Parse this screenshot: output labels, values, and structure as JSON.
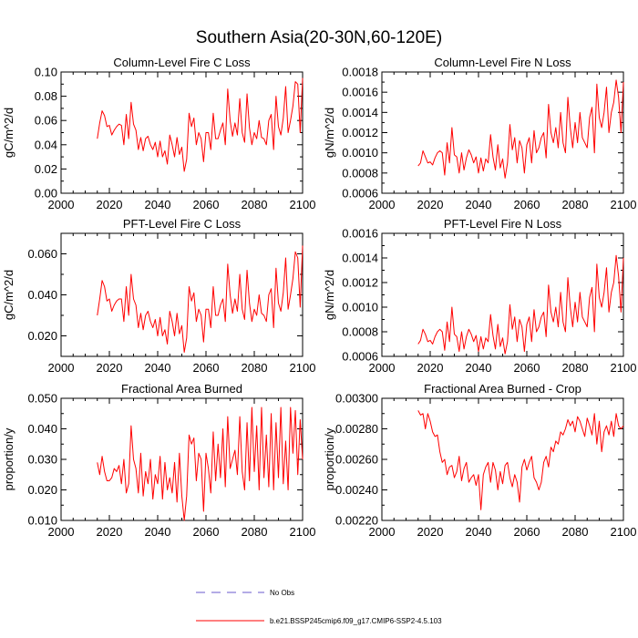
{
  "figure_title": "Southern Asia(20-30N,60-120E)",
  "colors": {
    "series": "#ff0000",
    "obs": "#6a5acd",
    "axis": "#000000"
  },
  "legend": {
    "obs_label": "No Obs",
    "model_label": "b.e21.BSSP245cmip6.f09_g17.CMIP6-SSP2-4.5.103"
  },
  "chart_data": [
    {
      "type": "line",
      "title": "Column-Level Fire C Loss",
      "ylabel": "gC/m^2/d",
      "xlabel": "",
      "xlim": [
        2000,
        2100
      ],
      "ylim": [
        0,
        0.1
      ],
      "xticks": [
        2000,
        2020,
        2040,
        2060,
        2080,
        2100
      ],
      "yticks": [
        0.0,
        0.02,
        0.04,
        0.06,
        0.08,
        0.1
      ],
      "ytick_labels": [
        "0.00",
        "0.02",
        "0.04",
        "0.06",
        "0.08",
        "0.10"
      ],
      "series": [
        {
          "name": "b.e21.BSSP245cmip6.f09_g17.CMIP6-SSP2-4.5.103",
          "x_start": 2015,
          "values": [
            0.045,
            0.058,
            0.068,
            0.064,
            0.055,
            0.056,
            0.048,
            0.052,
            0.055,
            0.057,
            0.056,
            0.04,
            0.065,
            0.045,
            0.075,
            0.057,
            0.052,
            0.036,
            0.046,
            0.035,
            0.045,
            0.047,
            0.04,
            0.036,
            0.042,
            0.03,
            0.043,
            0.03,
            0.035,
            0.024,
            0.048,
            0.04,
            0.03,
            0.046,
            0.032,
            0.038,
            0.018,
            0.028,
            0.066,
            0.055,
            0.062,
            0.04,
            0.05,
            0.045,
            0.026,
            0.05,
            0.05,
            0.036,
            0.066,
            0.045,
            0.045,
            0.052,
            0.058,
            0.04,
            0.086,
            0.06,
            0.047,
            0.058,
            0.048,
            0.078,
            0.05,
            0.042,
            0.082,
            0.054,
            0.04,
            0.05,
            0.045,
            0.06,
            0.046,
            0.045,
            0.04,
            0.06,
            0.065,
            0.036,
            0.08,
            0.055,
            0.048,
            0.062,
            0.088,
            0.05,
            0.06,
            0.072,
            0.092,
            0.09,
            0.05,
            0.095
          ]
        }
      ]
    },
    {
      "type": "line",
      "title": "Column-Level Fire N Loss",
      "ylabel": "gN/m^2/d",
      "xlabel": "",
      "xlim": [
        2000,
        2100
      ],
      "ylim": [
        0.0006,
        0.0018
      ],
      "xticks": [
        2000,
        2020,
        2040,
        2060,
        2080,
        2100
      ],
      "yticks": [
        0.0006,
        0.0008,
        0.001,
        0.0012,
        0.0014,
        0.0016,
        0.0018
      ],
      "ytick_labels": [
        "0.0006",
        "0.0008",
        "0.0010",
        "0.0012",
        "0.0014",
        "0.0016",
        "0.0018"
      ],
      "series": [
        {
          "name": "b.e21.BSSP245cmip6.f09_g17.CMIP6-SSP2-4.5.103",
          "x_start": 2015,
          "values": [
            0.00087,
            0.0009,
            0.00102,
            0.00096,
            0.0009,
            0.00091,
            0.00088,
            0.00095,
            0.001,
            0.00102,
            0.001,
            0.00078,
            0.0011,
            0.0009,
            0.00125,
            0.00098,
            0.00096,
            0.0008,
            0.001,
            0.00083,
            0.00095,
            0.00103,
            0.00098,
            0.0009,
            0.00096,
            0.0008,
            0.00095,
            0.00082,
            0.00094,
            0.0009,
            0.00118,
            0.00096,
            0.00083,
            0.00108,
            0.00085,
            0.00094,
            0.00075,
            0.0009,
            0.00128,
            0.00103,
            0.00115,
            0.0009,
            0.00112,
            0.00105,
            0.0008,
            0.00108,
            0.00115,
            0.0009,
            0.00122,
            0.001,
            0.00105,
            0.00115,
            0.0012,
            0.00095,
            0.00148,
            0.0012,
            0.0011,
            0.00125,
            0.00105,
            0.0014,
            0.0011,
            0.001,
            0.00155,
            0.00125,
            0.00105,
            0.0013,
            0.0011,
            0.0014,
            0.00115,
            0.0011,
            0.00105,
            0.00135,
            0.00145,
            0.001,
            0.00168,
            0.00135,
            0.00125,
            0.0014,
            0.00165,
            0.0012,
            0.0014,
            0.0015,
            0.00172,
            0.00155,
            0.0012,
            0.0017
          ]
        }
      ]
    },
    {
      "type": "line",
      "title": "PFT-Level Fire C Loss",
      "ylabel": "gC/m^2/d",
      "xlabel": "",
      "xlim": [
        2000,
        2100
      ],
      "ylim": [
        0.01,
        0.07
      ],
      "xticks": [
        2000,
        2020,
        2040,
        2060,
        2080,
        2100
      ],
      "yticks": [
        0.02,
        0.04,
        0.06
      ],
      "ytick_labels": [
        "0.020",
        "0.040",
        "0.060"
      ],
      "series": [
        {
          "name": "b.e21.BSSP245cmip6.f09_g17.CMIP6-SSP2-4.5.103",
          "x_start": 2015,
          "values": [
            0.03,
            0.038,
            0.047,
            0.044,
            0.037,
            0.038,
            0.032,
            0.035,
            0.037,
            0.038,
            0.038,
            0.027,
            0.044,
            0.03,
            0.05,
            0.038,
            0.035,
            0.024,
            0.031,
            0.023,
            0.03,
            0.032,
            0.027,
            0.024,
            0.028,
            0.02,
            0.029,
            0.02,
            0.023,
            0.016,
            0.032,
            0.027,
            0.02,
            0.031,
            0.021,
            0.025,
            0.012,
            0.019,
            0.044,
            0.037,
            0.041,
            0.027,
            0.033,
            0.03,
            0.017,
            0.033,
            0.033,
            0.024,
            0.044,
            0.03,
            0.03,
            0.035,
            0.038,
            0.027,
            0.055,
            0.04,
            0.031,
            0.038,
            0.032,
            0.05,
            0.033,
            0.028,
            0.052,
            0.036,
            0.027,
            0.033,
            0.03,
            0.04,
            0.031,
            0.03,
            0.027,
            0.04,
            0.043,
            0.024,
            0.053,
            0.036,
            0.032,
            0.041,
            0.058,
            0.033,
            0.04,
            0.048,
            0.061,
            0.058,
            0.034,
            0.064
          ]
        }
      ]
    },
    {
      "type": "line",
      "title": "PFT-Level Fire N Loss",
      "ylabel": "gN/m^2/d",
      "xlabel": "",
      "xlim": [
        2000,
        2100
      ],
      "ylim": [
        0.0006,
        0.0016
      ],
      "xticks": [
        2000,
        2020,
        2040,
        2060,
        2080,
        2100
      ],
      "yticks": [
        0.0006,
        0.0008,
        0.001,
        0.0012,
        0.0014,
        0.0016
      ],
      "ytick_labels": [
        "0.0006",
        "0.0008",
        "0.0010",
        "0.0012",
        "0.0014",
        "0.0016"
      ],
      "series": [
        {
          "name": "b.e21.BSSP245cmip6.f09_g17.CMIP6-SSP2-4.5.103",
          "x_start": 2015,
          "values": [
            0.0007,
            0.00073,
            0.00082,
            0.00078,
            0.00072,
            0.00073,
            0.0007,
            0.00076,
            0.0008,
            0.00082,
            0.0008,
            0.00065,
            0.00088,
            0.00072,
            0.001,
            0.00078,
            0.00076,
            0.00064,
            0.0008,
            0.00066,
            0.00076,
            0.00082,
            0.00078,
            0.00072,
            0.00077,
            0.00064,
            0.00076,
            0.00066,
            0.00075,
            0.00072,
            0.00094,
            0.00077,
            0.00066,
            0.00086,
            0.00068,
            0.00075,
            0.00062,
            0.00072,
            0.00102,
            0.00082,
            0.00092,
            0.00072,
            0.0009,
            0.00084,
            0.00064,
            0.00086,
            0.00092,
            0.00072,
            0.00098,
            0.0008,
            0.00084,
            0.00092,
            0.00096,
            0.00076,
            0.00118,
            0.00096,
            0.00088,
            0.001,
            0.00084,
            0.00112,
            0.00088,
            0.0008,
            0.00124,
            0.001,
            0.00084,
            0.00104,
            0.00088,
            0.00112,
            0.00092,
            0.00088,
            0.00084,
            0.00108,
            0.00116,
            0.0008,
            0.00135,
            0.00108,
            0.001,
            0.00112,
            0.00132,
            0.00096,
            0.00112,
            0.0012,
            0.00142,
            0.00125,
            0.00096,
            0.0014
          ]
        }
      ]
    },
    {
      "type": "line",
      "title": "Fractional Area Burned",
      "ylabel": "proportion/y",
      "xlabel": "",
      "xlim": [
        2000,
        2100
      ],
      "ylim": [
        0.01,
        0.05
      ],
      "xticks": [
        2000,
        2020,
        2040,
        2060,
        2080,
        2100
      ],
      "yticks": [
        0.01,
        0.02,
        0.03,
        0.04,
        0.05
      ],
      "ytick_labels": [
        "0.010",
        "0.020",
        "0.030",
        "0.040",
        "0.050"
      ],
      "series": [
        {
          "name": "b.e21.BSSP245cmip6.f09_g17.CMIP6-SSP2-4.5.103",
          "x_start": 2015,
          "values": [
            0.029,
            0.025,
            0.031,
            0.026,
            0.023,
            0.023,
            0.024,
            0.027,
            0.026,
            0.028,
            0.022,
            0.03,
            0.019,
            0.022,
            0.041,
            0.03,
            0.027,
            0.019,
            0.032,
            0.018,
            0.026,
            0.022,
            0.03,
            0.017,
            0.025,
            0.022,
            0.031,
            0.017,
            0.029,
            0.02,
            0.024,
            0.019,
            0.029,
            0.016,
            0.032,
            0.018,
            0.01,
            0.018,
            0.038,
            0.035,
            0.037,
            0.023,
            0.032,
            0.03,
            0.013,
            0.032,
            0.027,
            0.019,
            0.039,
            0.023,
            0.035,
            0.024,
            0.04,
            0.021,
            0.044,
            0.027,
            0.03,
            0.033,
            0.025,
            0.044,
            0.026,
            0.02,
            0.042,
            0.023,
            0.047,
            0.026,
            0.041,
            0.02,
            0.047,
            0.024,
            0.038,
            0.021,
            0.045,
            0.02,
            0.042,
            0.024,
            0.047,
            0.022,
            0.036,
            0.02,
            0.047,
            0.032,
            0.046,
            0.025,
            0.043,
            0.03
          ]
        }
      ]
    },
    {
      "type": "line",
      "title": "Fractional Area Burned - Crop",
      "ylabel": "proportion/y",
      "xlabel": "",
      "xlim": [
        2000,
        2100
      ],
      "ylim": [
        0.0022,
        0.003
      ],
      "xticks": [
        2000,
        2020,
        2040,
        2060,
        2080,
        2100
      ],
      "yticks": [
        0.0022,
        0.0024,
        0.0026,
        0.0028,
        0.003
      ],
      "ytick_labels": [
        "0.00220",
        "0.00240",
        "0.00260",
        "0.00280",
        "0.00300"
      ],
      "series": [
        {
          "name": "b.e21.BSSP245cmip6.f09_g17.CMIP6-SSP2-4.5.103",
          "x_start": 2015,
          "values": [
            0.00292,
            0.00289,
            0.0029,
            0.0028,
            0.0029,
            0.00285,
            0.00278,
            0.00275,
            0.00276,
            0.00265,
            0.00258,
            0.0026,
            0.0025,
            0.00255,
            0.00256,
            0.00248,
            0.00252,
            0.00262,
            0.00246,
            0.00254,
            0.00258,
            0.00245,
            0.00248,
            0.0025,
            0.00243,
            0.0025,
            0.00227,
            0.0025,
            0.00255,
            0.00258,
            0.00245,
            0.00258,
            0.00253,
            0.0024,
            0.00252,
            0.00244,
            0.00256,
            0.00258,
            0.00248,
            0.00242,
            0.0025,
            0.00245,
            0.00232,
            0.00255,
            0.0026,
            0.00253,
            0.00258,
            0.00262,
            0.00248,
            0.00245,
            0.0024,
            0.00245,
            0.00258,
            0.00262,
            0.00255,
            0.00268,
            0.00265,
            0.00272,
            0.0027,
            0.00278,
            0.00276,
            0.0028,
            0.00286,
            0.00282,
            0.00285,
            0.00278,
            0.00288,
            0.00285,
            0.0028,
            0.00275,
            0.00287,
            0.00282,
            0.00276,
            0.0029,
            0.0027,
            0.00285,
            0.00265,
            0.00278,
            0.00282,
            0.00276,
            0.00285,
            0.00275,
            0.0029,
            0.00282,
            0.0028,
            0.00282
          ]
        }
      ]
    }
  ]
}
